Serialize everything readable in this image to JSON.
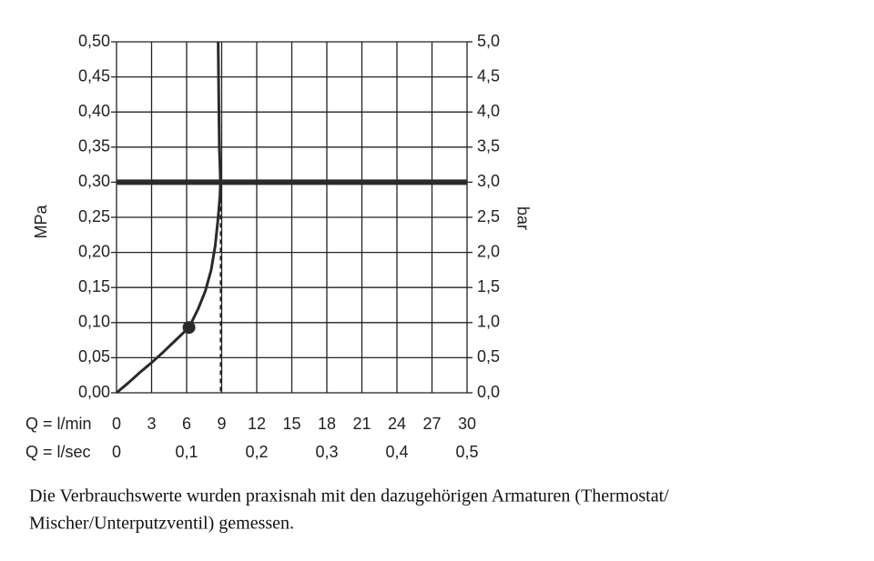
{
  "chart_data": {
    "type": "line",
    "ylabel": "MPa",
    "y2label": "bar",
    "xlabel": "Q = l/min",
    "x2label": "Q = l/sec",
    "xlim": [
      0,
      30
    ],
    "xticks": [
      0,
      3,
      6,
      9,
      12,
      15,
      18,
      21,
      24,
      27,
      30
    ],
    "x2lim": [
      0,
      0.5
    ],
    "x2ticks": [
      0,
      {
        "value": 0.1,
        "label": "0,1"
      },
      {
        "value": 0.2,
        "label": "0,2"
      },
      {
        "value": 0.3,
        "label": "0,3"
      },
      {
        "value": 0.4,
        "label": "0,4"
      },
      {
        "value": 0.5,
        "label": "0,5"
      }
    ],
    "ylim": [
      0,
      0.5
    ],
    "yticks": [
      {
        "value": 0,
        "label": "0,00"
      },
      {
        "value": 0.05,
        "label": "0,05"
      },
      {
        "value": 0.1,
        "label": "0,10"
      },
      {
        "value": 0.15,
        "label": "0,15"
      },
      {
        "value": 0.2,
        "label": "0,20"
      },
      {
        "value": 0.25,
        "label": "0,25"
      },
      {
        "value": 0.3,
        "label": "0,30"
      },
      {
        "value": 0.35,
        "label": "0,35"
      },
      {
        "value": 0.4,
        "label": "0,40"
      },
      {
        "value": 0.45,
        "label": "0,45"
      },
      {
        "value": 0.5,
        "label": "0,50"
      }
    ],
    "y2lim": [
      0,
      5
    ],
    "y2ticks": [
      {
        "value": 0,
        "label": "0,0"
      },
      {
        "value": 0.5,
        "label": "0,5"
      },
      {
        "value": 1,
        "label": "1,0"
      },
      {
        "value": 1.5,
        "label": "1,5"
      },
      {
        "value": 2,
        "label": "2,0"
      },
      {
        "value": 2.5,
        "label": "2,5"
      },
      {
        "value": 3,
        "label": "3,0"
      },
      {
        "value": 3.5,
        "label": "3,5"
      },
      {
        "value": 4,
        "label": "4,0"
      },
      {
        "value": 4.5,
        "label": "4,5"
      },
      {
        "value": 5,
        "label": "5,0"
      }
    ],
    "grid": true,
    "series": [
      {
        "color": "#2a2a2a",
        "x": [
          0,
          1,
          2,
          3,
          4,
          5,
          6.2,
          7,
          7.6,
          8.1,
          8.45,
          8.7,
          8.85,
          8.9,
          8.8,
          8.75,
          8.7
        ],
        "values": [
          0,
          0.014,
          0.029,
          0.043,
          0.058,
          0.074,
          0.093,
          0.12,
          0.145,
          0.175,
          0.21,
          0.25,
          0.28,
          0.3,
          0.35,
          0.42,
          0.5
        ]
      }
    ],
    "marker": {
      "x": 6.2,
      "y": 0.093
    },
    "reference_y": 0.3,
    "reference_x": 8.9
  },
  "caption": [
    "Die Verbrauchswerte wurden praxisnah mit den dazugehörigen Armaturen (Thermostat/",
    "Mischer/Unterputzventil) gemessen."
  ]
}
